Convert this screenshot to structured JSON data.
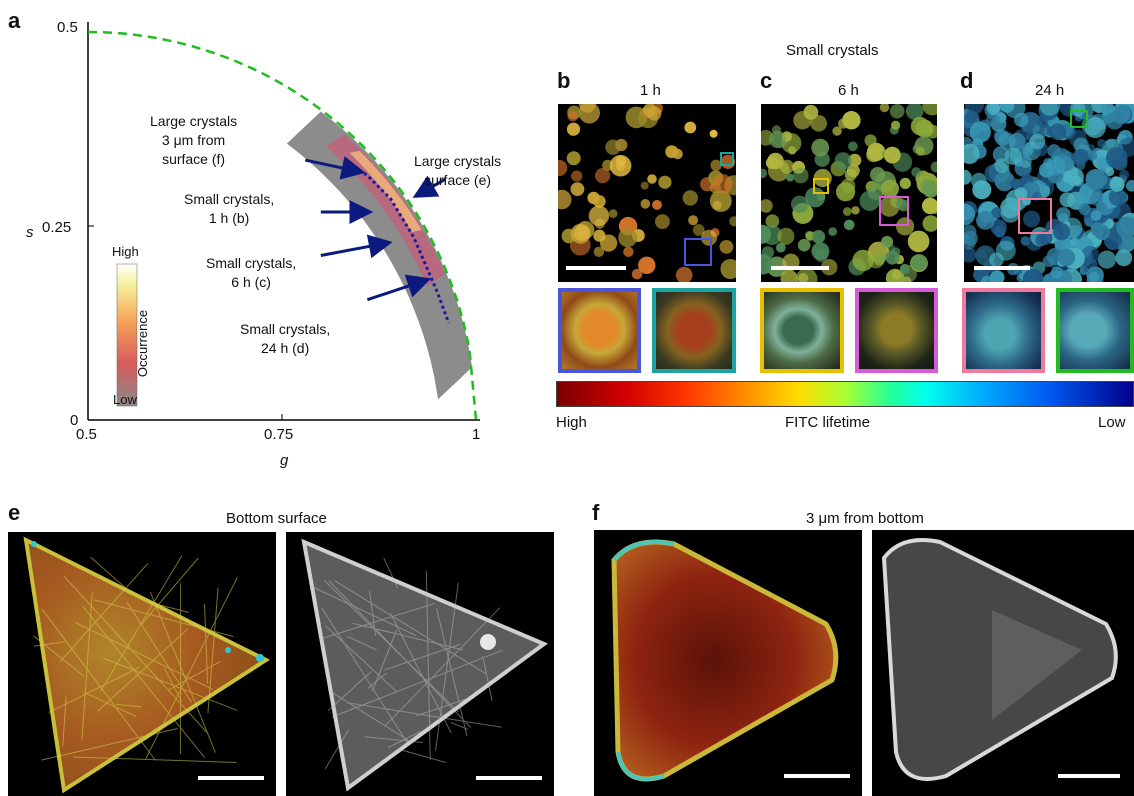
{
  "panels": {
    "a": "a",
    "b": "b",
    "c": "c",
    "d": "d",
    "e": "e",
    "f": "f"
  },
  "chart_data": {
    "type": "scatter",
    "xlabel": "g",
    "ylabel": "s",
    "xlim": [
      0.5,
      1.0
    ],
    "ylim": [
      0,
      0.5
    ],
    "x_ticks": [
      "0.5",
      "0.75",
      "1"
    ],
    "y_ticks": [
      "0",
      "0.25",
      "0.5"
    ],
    "colorbar": {
      "high": "High",
      "low": "Low",
      "label": "Occurrence"
    },
    "semicircle": {
      "color": "#22bb22",
      "style": "dashed"
    },
    "fit_line": {
      "color": "#1a1aa0",
      "style": "dotted",
      "x": [
        0.83,
        0.86,
        0.89,
        0.92,
        0.95,
        0.965
      ],
      "y": [
        0.335,
        0.315,
        0.285,
        0.235,
        0.165,
        0.125
      ]
    },
    "annotations": [
      {
        "lines": [
          "Large crystals",
          "3 μm from",
          "surface (f)"
        ],
        "x": 0.835,
        "y": 0.325
      },
      {
        "lines": [
          "Large crystals",
          "surface (e)"
        ],
        "x": 0.898,
        "y": 0.31
      },
      {
        "lines": [
          "Small crystals,",
          "1 h (b)"
        ],
        "x": 0.868,
        "y": 0.271
      },
      {
        "lines": [
          "Small crystals,",
          "6 h (c)"
        ],
        "x": 0.88,
        "y": 0.225
      },
      {
        "lines": [
          "Small crystals,",
          "24 h (d)"
        ],
        "x": 0.9,
        "y": 0.175
      }
    ]
  },
  "small_crystals": {
    "title": "Small crystals",
    "times": [
      "1 h",
      "6 h",
      "24 h"
    ]
  },
  "lifetime_bar": {
    "high": "High",
    "label": "FITC lifetime",
    "low": "Low"
  },
  "panel_e": {
    "title": "Bottom surface"
  },
  "panel_f": {
    "title": "3 μm from bottom"
  },
  "colors": {
    "inset_blue": "#4a55d8",
    "inset_teal": "#1fa3a0",
    "inset_yellow": "#e8c000",
    "inset_magenta": "#d75bd6",
    "inset_pink": "#f07a9c",
    "inset_green": "#22bb22",
    "arrow": "#0c1a80"
  }
}
